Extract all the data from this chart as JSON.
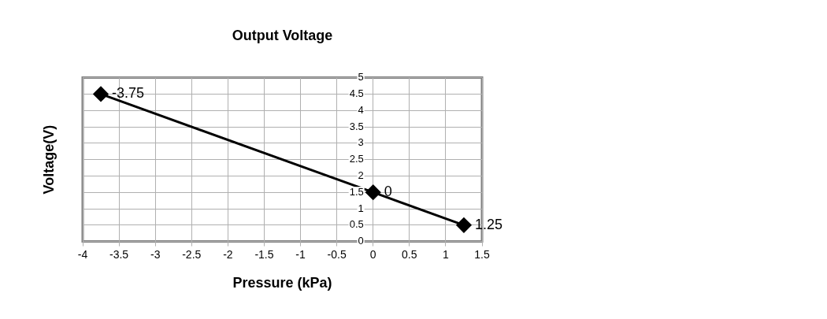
{
  "chart_data": {
    "type": "line",
    "title": "Output Voltage",
    "xlabel": "Pressure (kPa)",
    "ylabel": "Voltage(V)",
    "series": [
      {
        "color": "#000000",
        "x": [
          -3.75,
          0,
          1.25
        ],
        "values": [
          4.5,
          1.5,
          0.5
        ]
      }
    ],
    "annotations": [
      {
        "text": "-3.75",
        "x": -3.75,
        "y": 4.5
      },
      {
        "text": "0",
        "x": 0,
        "y": 1.5
      },
      {
        "text": "1.25",
        "x": 1.25,
        "y": 0.5
      }
    ],
    "xlim": [
      -4,
      1.5
    ],
    "xticks": [
      -4,
      -3.5,
      -3,
      -2.5,
      -2,
      -1.5,
      -1,
      -0.5,
      0,
      0.5,
      1,
      1.5
    ],
    "ylim": [
      0,
      5
    ],
    "yticks": [
      0,
      0.5,
      1,
      1.5,
      2,
      2.5,
      3,
      3.5,
      4,
      4.5,
      5
    ],
    "grid": true,
    "legend": false,
    "marker": "diamond",
    "line_style": "solid"
  }
}
